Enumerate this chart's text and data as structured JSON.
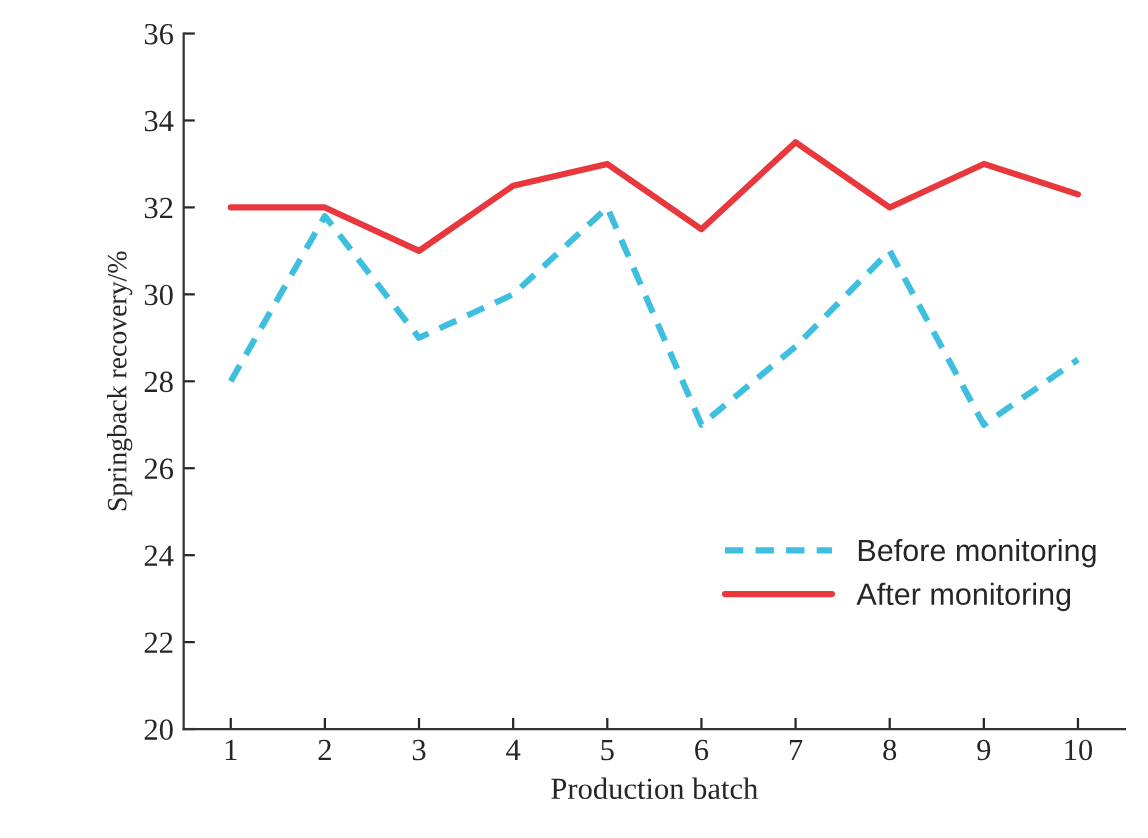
{
  "chart_data": {
    "type": "line",
    "xlabel": "Production batch",
    "ylabel": "Springback recovery/%",
    "categories": [
      "1",
      "2",
      "3",
      "4",
      "5",
      "6",
      "7",
      "8",
      "9",
      "10"
    ],
    "series": [
      {
        "name": "Before monitoring",
        "color": "#3fbfe0",
        "line_style": "dashed",
        "values": [
          28,
          31.8,
          29,
          30,
          32,
          27,
          28.8,
          31,
          27,
          28.5
        ]
      },
      {
        "name": "After monitoring",
        "color": "#e8383d",
        "line_style": "solid",
        "values": [
          32,
          32,
          31,
          32.5,
          33,
          31.5,
          33.5,
          32,
          33,
          32.3
        ]
      }
    ],
    "ylim": [
      20,
      36
    ],
    "yticks": [
      20,
      22,
      24,
      26,
      28,
      30,
      32,
      34,
      36
    ],
    "grid": false,
    "legend": "bottom right"
  }
}
